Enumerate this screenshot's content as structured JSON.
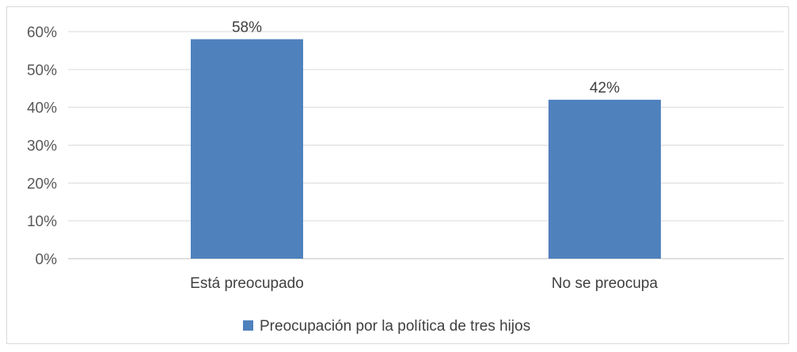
{
  "chart_data": {
    "type": "bar",
    "categories": [
      "Está preocupado",
      "No se preocupa"
    ],
    "series": [
      {
        "name": "Preocupación por la política de tres hijos",
        "values": [
          58,
          42
        ],
        "color": "#4f81bd"
      }
    ],
    "data_labels": [
      "58%",
      "42%"
    ],
    "y_ticks": [
      "0%",
      "10%",
      "20%",
      "30%",
      "40%",
      "50%",
      "60%"
    ],
    "ylim": [
      0,
      60
    ],
    "grid": true,
    "legend_position": "bottom",
    "title": "",
    "xlabel": "",
    "ylabel": ""
  }
}
